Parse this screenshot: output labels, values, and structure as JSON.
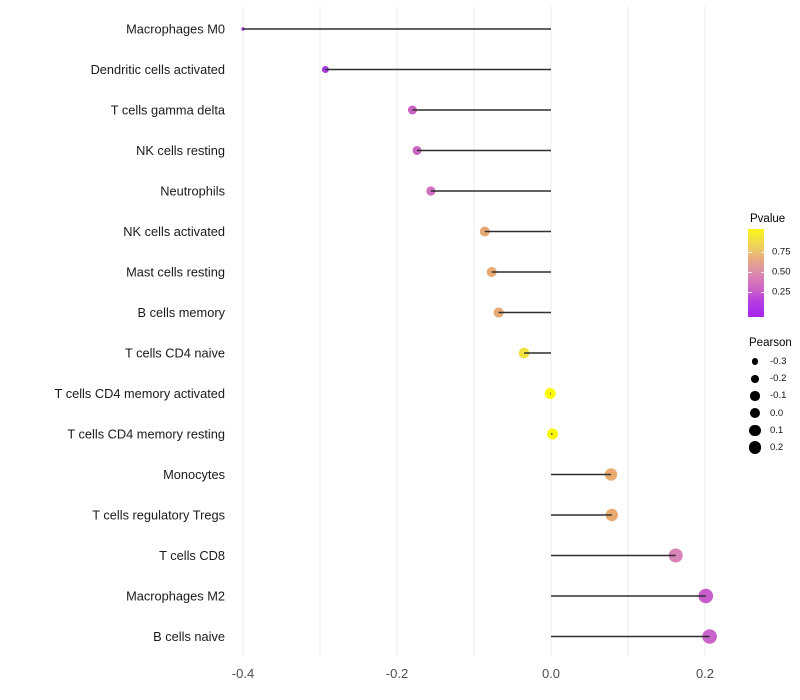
{
  "legend": {
    "pvalue": {
      "title": "Pvalue",
      "gradient_stops": [
        "#A726EE",
        "#B43BE2",
        "#CE66C2",
        "#DC8BAC",
        "#E7AD80",
        "#F0D855",
        "#FAF614"
      ],
      "ticks": [
        {
          "label": "0.75",
          "frac_from_top": 0.261
        },
        {
          "label": "0.50",
          "frac_from_top": 0.489
        },
        {
          "label": "0.25",
          "frac_from_top": 0.716
        }
      ]
    },
    "pearson": {
      "title": "Pearson",
      "dot_color": "#000000",
      "items": [
        {
          "label": "-0.3",
          "diameter": 6.6
        },
        {
          "label": "-0.2",
          "diameter": 7.8
        },
        {
          "label": "-0.1",
          "diameter": 9.2
        },
        {
          "label": "0.0",
          "diameter": 10.4
        },
        {
          "label": "0.1",
          "diameter": 11.4
        },
        {
          "label": "0.2",
          "diameter": 12.6
        }
      ]
    }
  },
  "chart_data": {
    "type": "lollipop",
    "orientation": "horizontal",
    "title": "",
    "xlabel": "",
    "ylabel": "",
    "xlim": [
      -0.45,
      0.235
    ],
    "x_ticks": [
      -0.4,
      -0.2,
      0.0,
      0.2
    ],
    "x_tick_labels": [
      "-0.4",
      "-0.2",
      "0.0",
      "0.2"
    ],
    "gridlines_x": [
      -0.4,
      -0.3,
      -0.2,
      -0.1,
      0.0,
      0.1,
      0.2
    ],
    "grid": "vertical-only",
    "legend_position": "right",
    "color_encodes": "Pvalue",
    "size_encodes": "Pearson",
    "style": {
      "stem_color": "#2f2f2f",
      "grid_color": "#ececec",
      "label_color": "#1a1a1a",
      "tick_label_color": "#4d4d4d"
    },
    "categories": [
      "Macrophages M0",
      "Dendritic cells activated",
      "T cells gamma delta",
      "NK cells resting",
      "Neutrophils",
      "NK cells activated",
      "Mast cells resting",
      "B cells memory",
      "T cells CD4 naive",
      "T cells CD4 memory activated",
      "T cells CD4 memory resting",
      "Monocytes",
      "T cells regulatory  Tregs",
      "T cells CD8",
      "Macrophages M2",
      "B cells naive"
    ],
    "points": [
      {
        "category": "Macrophages M0",
        "pearson": -0.4,
        "color": "#9232E6",
        "radius": 1.7
      },
      {
        "category": "Dendritic cells activated",
        "pearson": -0.293,
        "color": "#A43BDC",
        "radius": 3.5
      },
      {
        "category": "T cells gamma delta",
        "pearson": -0.18,
        "color": "#CB63C3",
        "radius": 4.5
      },
      {
        "category": "NK cells resting",
        "pearson": -0.174,
        "color": "#CC66C2",
        "radius": 4.5
      },
      {
        "category": "Neutrophils",
        "pearson": -0.156,
        "color": "#D170C0",
        "radius": 4.6
      },
      {
        "category": "NK cells activated",
        "pearson": -0.086,
        "color": "#E6A873",
        "radius": 5.0
      },
      {
        "category": "Mast cells resting",
        "pearson": -0.077,
        "color": "#E7AA75",
        "radius": 5.0
      },
      {
        "category": "B cells memory",
        "pearson": -0.068,
        "color": "#E7AC78",
        "radius": 5.1
      },
      {
        "category": "T cells CD4 naive",
        "pearson": -0.035,
        "color": "#F2E23C",
        "radius": 5.3
      },
      {
        "category": "T cells CD4 memory activated",
        "pearson": -0.001,
        "color": "#FDFB03",
        "radius": 5.5
      },
      {
        "category": "T cells CD4 memory resting",
        "pearson": 0.002,
        "color": "#FCF803",
        "radius": 5.5
      },
      {
        "category": "Monocytes",
        "pearson": 0.078,
        "color": "#E9AB6F",
        "radius": 6.2
      },
      {
        "category": "T cells regulatory  Tregs",
        "pearson": 0.079,
        "color": "#E9AA71",
        "radius": 6.2
      },
      {
        "category": "T cells CD8",
        "pearson": 0.162,
        "color": "#D884B8",
        "radius": 7.0
      },
      {
        "category": "Macrophages M2",
        "pearson": 0.201,
        "color": "#C75ECB",
        "radius": 7.3
      },
      {
        "category": "B cells naive",
        "pearson": 0.206,
        "color": "#C964C9",
        "radius": 7.3
      }
    ]
  }
}
